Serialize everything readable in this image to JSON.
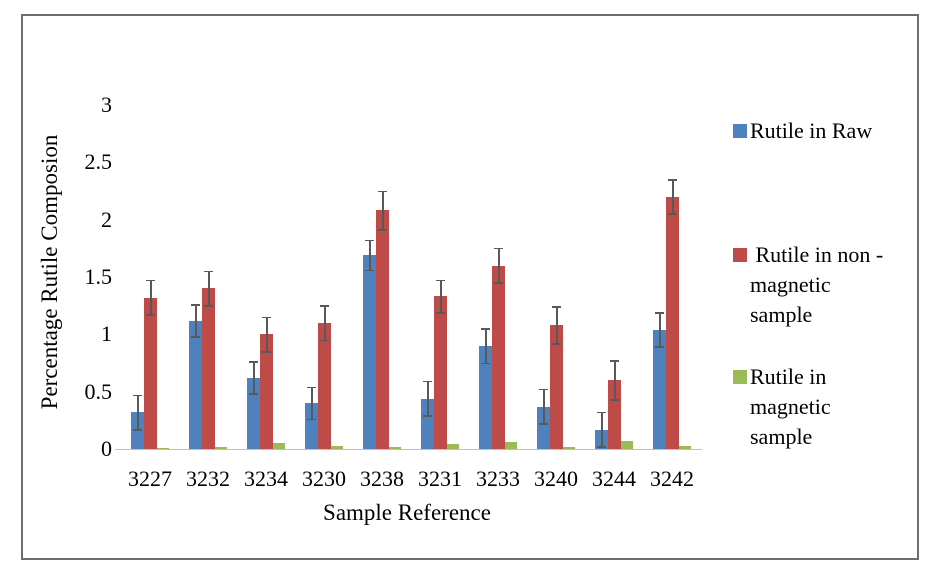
{
  "figure": {
    "background": "#ffffff",
    "border_color": "#6e6e6e"
  },
  "chart_data": {
    "type": "bar",
    "title": "",
    "xlabel": "Sample Reference",
    "ylabel": "Percentage Rutile Composion",
    "categories": [
      "3227",
      "3232",
      "3234",
      "3230",
      "3238",
      "3231",
      "3233",
      "3240",
      "3244",
      "3242"
    ],
    "series": [
      {
        "name": "Rutile in Raw",
        "color": "#4F81BD",
        "values": [
          0.32,
          1.12,
          0.62,
          0.4,
          1.69,
          0.44,
          0.9,
          0.37,
          0.17,
          1.04
        ],
        "errors": [
          0.15,
          0.14,
          0.14,
          0.14,
          0.13,
          0.15,
          0.15,
          0.15,
          0.15,
          0.15
        ]
      },
      {
        "name": "Rutile in non - magnetic sample",
        "color": "#BE4B48",
        "values": [
          1.32,
          1.4,
          1.0,
          1.1,
          2.08,
          1.33,
          1.6,
          1.08,
          0.6,
          2.2
        ],
        "errors": [
          0.15,
          0.15,
          0.15,
          0.15,
          0.17,
          0.14,
          0.15,
          0.16,
          0.17,
          0.15
        ]
      },
      {
        "name": "Rutile in magnetic sample",
        "color": "#9BBB59",
        "values": [
          0.01,
          0.02,
          0.05,
          0.03,
          0.02,
          0.04,
          0.06,
          0.02,
          0.07,
          0.03
        ],
        "errors": [
          0,
          0,
          0,
          0,
          0,
          0,
          0,
          0,
          0,
          0
        ]
      }
    ],
    "ylim": [
      0,
      3
    ],
    "ytick_step": 0.5,
    "yticks": [
      "0",
      "0.5",
      "1",
      "1.5",
      "2",
      "2.5",
      "3"
    ],
    "grid": false,
    "error_bars": true,
    "legend_position": "right"
  },
  "legend": {
    "items": [
      {
        "color": "#4F81BD",
        "lines": [
          "Rutile in Raw"
        ]
      },
      {
        "color": "#BE4B48",
        "lines": [
          " Rutile in non -",
          "magnetic",
          "sample"
        ]
      },
      {
        "color": "#9BBB59",
        "lines": [
          "Rutile in",
          "magnetic",
          "sample"
        ]
      }
    ]
  }
}
